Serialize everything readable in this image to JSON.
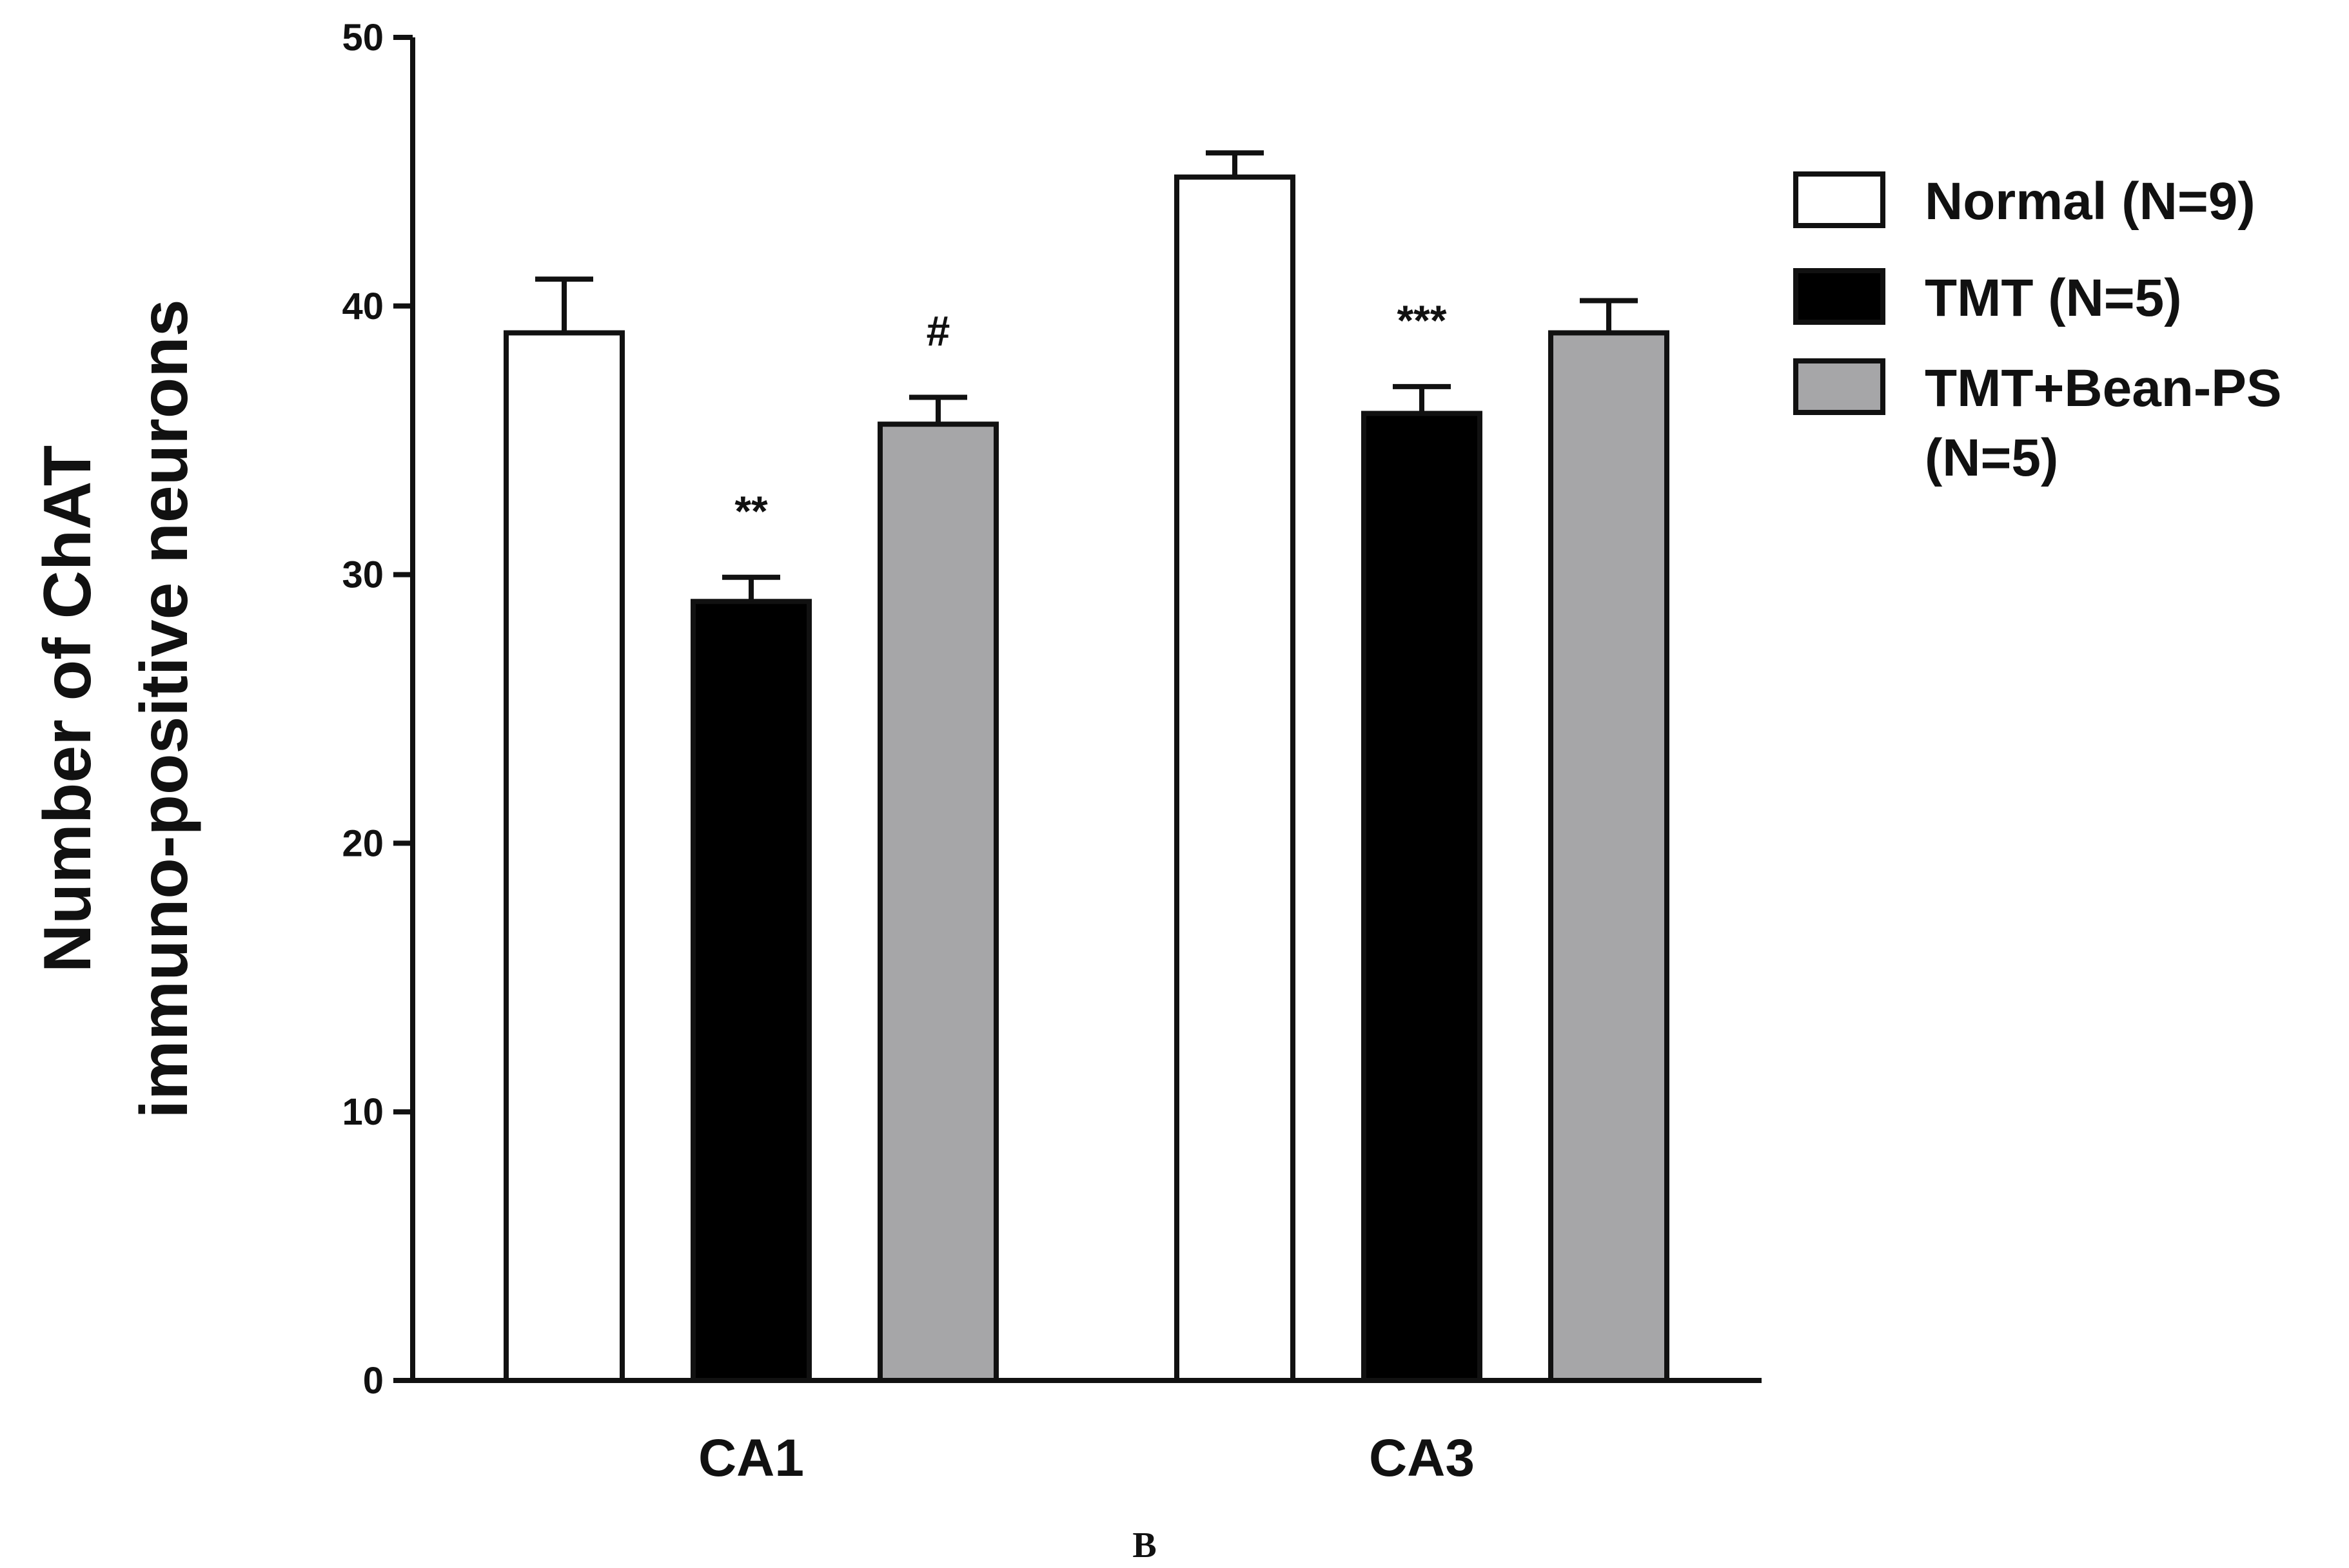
{
  "chart_data": {
    "type": "bar",
    "title": "",
    "xlabel": "",
    "ylabel_lines": [
      "Number of ChAT",
      "immuno-positive neurons"
    ],
    "categories": [
      "CA1",
      "CA3"
    ],
    "ylim": [
      0,
      50
    ],
    "yticks": [
      0,
      10,
      20,
      30,
      40,
      50
    ],
    "grid": false,
    "legend_position": "right",
    "series": [
      {
        "name": "Normal (N=9)",
        "name_lines": [
          "Normal (N=9)"
        ],
        "color": "#ffffff",
        "values": [
          39,
          44.8
        ],
        "errors": [
          2.0,
          0.9
        ],
        "annotations": [
          "",
          ""
        ]
      },
      {
        "name": "TMT (N=5)",
        "name_lines": [
          "TMT (N=5)"
        ],
        "color": "#000000",
        "values": [
          29,
          36
        ],
        "errors": [
          0.9,
          1.0
        ],
        "annotations": [
          "**",
          "***"
        ]
      },
      {
        "name": "TMT+Bean-PS (N=5)",
        "name_lines": [
          "TMT+Bean-PS",
          "(N=5)"
        ],
        "color": "#a6a6a8",
        "values": [
          35.6,
          39
        ],
        "errors": [
          1.0,
          1.2
        ],
        "annotations": [
          "#",
          ""
        ]
      }
    ]
  },
  "panel_label": "B"
}
